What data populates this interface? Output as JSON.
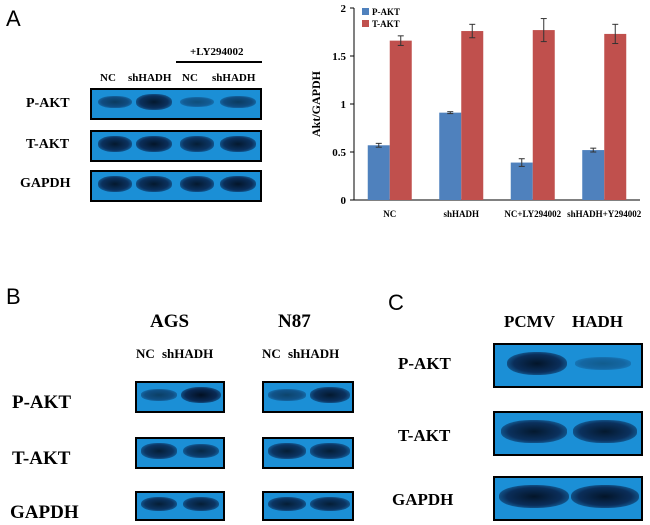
{
  "panels": {
    "a": "A",
    "b": "B",
    "c": "C"
  },
  "panel_a_blot": {
    "treatment_label": "+LY294002",
    "lanes": [
      "NC",
      "shHADH",
      "NC",
      "shHADH"
    ],
    "rows": [
      "P-AKT",
      "T-AKT",
      "GAPDH"
    ]
  },
  "panel_b_blot": {
    "cell_lines": [
      "AGS",
      "N87"
    ],
    "lanes": [
      "NC",
      "shHADH"
    ],
    "rows": [
      "P-AKT",
      "T-AKT",
      "GAPDH"
    ]
  },
  "panel_c_blot": {
    "lanes": [
      "PCMV",
      "HADH"
    ],
    "rows": [
      "P-AKT",
      "T-AKT",
      "GAPDH"
    ]
  },
  "band_intensity": {
    "a": {
      "P-AKT": [
        0.55,
        0.9,
        0.35,
        0.55
      ],
      "T-AKT": [
        0.9,
        0.95,
        0.85,
        0.9
      ],
      "GAPDH": [
        0.9,
        0.9,
        0.9,
        0.95
      ]
    },
    "b_ags": {
      "P-AKT": [
        0.5,
        1.0
      ],
      "T-AKT": [
        0.85,
        0.75
      ],
      "GAPDH": [
        0.85,
        0.85
      ]
    },
    "b_n87": {
      "P-AKT": [
        0.45,
        0.9
      ],
      "T-AKT": [
        0.85,
        0.85
      ],
      "GAPDH": [
        0.85,
        0.85
      ]
    },
    "c": {
      "P-AKT": [
        0.95,
        0.2
      ],
      "T-AKT": [
        0.9,
        0.9
      ],
      "GAPDH": [
        0.95,
        0.95
      ]
    }
  },
  "chart_data": {
    "type": "bar",
    "title": "",
    "xlabel": "",
    "ylabel": "Akt/GAPDH",
    "ylim": [
      0,
      2
    ],
    "yticks": [
      0,
      0.5,
      1,
      1.5,
      2
    ],
    "ytick_labels": [
      "0",
      "0.5",
      "1",
      "1.5",
      "2"
    ],
    "categories": [
      "NC",
      "shHADH",
      "NC+LY294002",
      "shHADH+Y294002"
    ],
    "series": [
      {
        "name": "P-AKT",
        "color": "#4f81bd",
        "values": [
          0.57,
          0.91,
          0.39,
          0.52
        ],
        "errors": [
          0.02,
          0.01,
          0.04,
          0.02
        ]
      },
      {
        "name": "T-AKT",
        "color": "#c0504d",
        "values": [
          1.66,
          1.76,
          1.77,
          1.73
        ],
        "errors": [
          0.05,
          0.07,
          0.12,
          0.1
        ]
      }
    ],
    "legend_position": "top-left"
  }
}
